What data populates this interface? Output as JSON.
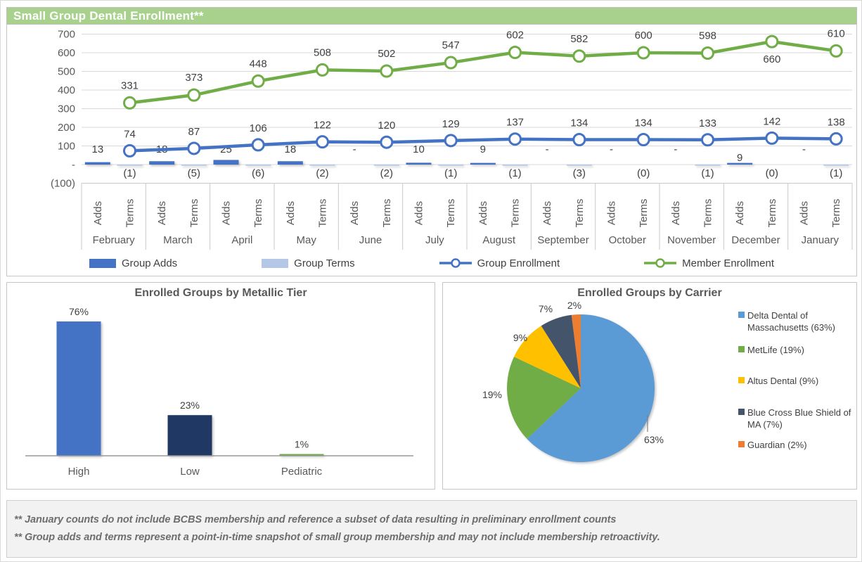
{
  "header": {
    "title": "Small Group Dental Enrollment**"
  },
  "chart_data": [
    {
      "id": "small-group-dental-enrollment",
      "type": "bar-line-combo",
      "title": "Small Group Dental Enrollment**",
      "categories": [
        "February",
        "March",
        "April",
        "May",
        "June",
        "July",
        "August",
        "September",
        "October",
        "November",
        "December",
        "January"
      ],
      "sub_categories": [
        "Adds",
        "Terms"
      ],
      "y_axis": {
        "min": -100,
        "max": 700,
        "grid": true,
        "tick_values": [
          700,
          600,
          500,
          400,
          300,
          200,
          100,
          0,
          -100
        ],
        "tick_labels": [
          "700",
          "600",
          "500",
          "400",
          "300",
          "200",
          "100",
          "-",
          "(100)"
        ]
      },
      "legend_position": "bottom",
      "series": [
        {
          "name": "Group Adds",
          "kind": "bar",
          "color": "#4472C4",
          "values": [
            13,
            18,
            25,
            18,
            0,
            10,
            9,
            0,
            0,
            0,
            9,
            0
          ],
          "data_labels": [
            "13",
            "18",
            "25",
            "18",
            "-",
            "10",
            "9",
            "-",
            "-",
            "-",
            "9",
            "-"
          ]
        },
        {
          "name": "Group Terms",
          "kind": "bar",
          "color": "#B4C7E7",
          "values": [
            -1,
            -5,
            -6,
            -2,
            -2,
            -1,
            -1,
            -3,
            0,
            -1,
            0,
            -1
          ],
          "data_labels": [
            "(1)",
            "(5)",
            "(6)",
            "(2)",
            "(2)",
            "(1)",
            "(1)",
            "(3)",
            "(0)",
            "(1)",
            "(0)",
            "(1)"
          ]
        },
        {
          "name": "Group Enrollment",
          "kind": "line",
          "marker": "circle",
          "color": "#4472C4",
          "values": [
            74,
            87,
            106,
            122,
            120,
            129,
            137,
            134,
            134,
            133,
            142,
            138
          ],
          "data_labels": [
            "74",
            "87",
            "106",
            "122",
            "120",
            "129",
            "137",
            "134",
            "134",
            "133",
            "142",
            "138"
          ]
        },
        {
          "name": "Member Enrollment",
          "kind": "line",
          "marker": "circle",
          "color": "#70AD47",
          "values": [
            331,
            373,
            448,
            508,
            502,
            547,
            602,
            582,
            600,
            598,
            660,
            610
          ],
          "data_labels": [
            "331",
            "373",
            "448",
            "508",
            "502",
            "547",
            "602",
            "582",
            "600",
            "598",
            "660",
            "610"
          ]
        }
      ]
    },
    {
      "id": "enrolled-groups-by-metallic-tier",
      "type": "bar",
      "title": "Enrolled Groups by Metallic Tier",
      "categories": [
        "High",
        "Low",
        "Pediatric"
      ],
      "values": [
        76,
        23,
        1
      ],
      "data_labels": [
        "76%",
        "23%",
        "1%"
      ],
      "colors": [
        "#4472C4",
        "#1F3864",
        "#70AD47"
      ],
      "ylim": [
        0,
        100
      ],
      "grid": false,
      "legend": "none"
    },
    {
      "id": "enrolled-groups-by-carrier",
      "type": "pie",
      "title": "Enrolled Groups by Carrier",
      "start_angle_deg": 0,
      "direction": "clockwise",
      "slices": [
        {
          "label": "Delta Dental of Massachusetts",
          "pct": 63,
          "color": "#5B9BD5",
          "slice_label": "63%"
        },
        {
          "label": "MetLife",
          "pct": 19,
          "color": "#70AD47",
          "slice_label": "19%"
        },
        {
          "label": "Altus Dental",
          "pct": 9,
          "color": "#FFC000",
          "slice_label": "9%"
        },
        {
          "label": "Blue Cross Blue Shield of MA",
          "pct": 7,
          "color": "#44546A",
          "slice_label": "7%"
        },
        {
          "label": "Guardian",
          "pct": 2,
          "color": "#ED7D31",
          "slice_label": "2%"
        }
      ],
      "legend_position": "right",
      "legend_entries": [
        "Delta Dental of Massachusetts (63%)",
        "MetLife (19%)",
        "Altus Dental (9%)",
        "Blue Cross Blue Shield of MA (7%)",
        "Guardian (2%)"
      ]
    }
  ],
  "footnotes": {
    "line1": "** January counts do not include BCBS membership and reference a subset of data resulting in preliminary enrollment counts",
    "line2": "** Group adds and terms represent a point-in-time snapshot of small group membership and may not include membership retroactivity."
  },
  "colors": {
    "header_bg": "#A9D18E",
    "header_text": "#FFFFFF",
    "grid": "#D9D9D9",
    "axis_text": "#595959",
    "label_text": "#404040",
    "panel_border": "#C6C6C6",
    "footer_bg": "#F2F2F2"
  }
}
